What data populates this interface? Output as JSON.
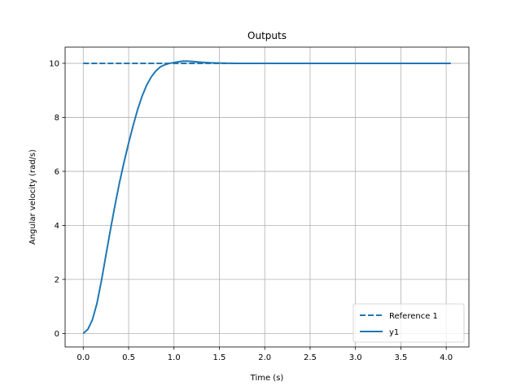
{
  "chart_data": {
    "type": "line",
    "title": "Outputs",
    "xlabel": "Time (s)",
    "ylabel": "Angular velocity (rad/s)",
    "xlim": [
      -0.2,
      4.25
    ],
    "ylim": [
      -0.5,
      10.6
    ],
    "xticks": [
      0.0,
      0.5,
      1.0,
      1.5,
      2.0,
      2.5,
      3.0,
      3.5,
      4.0
    ],
    "xtick_labels": [
      "0.0",
      "0.5",
      "1.0",
      "1.5",
      "2.0",
      "2.5",
      "3.0",
      "3.5",
      "4.0"
    ],
    "yticks": [
      0,
      2,
      4,
      6,
      8,
      10
    ],
    "ytick_labels": [
      "0",
      "2",
      "4",
      "6",
      "8",
      "10"
    ],
    "grid": true,
    "legend_position": "bottom-right",
    "series": [
      {
        "name": "Reference 1",
        "style": "dashed",
        "color": "#1f77b4",
        "x": [
          0.0,
          4.05
        ],
        "y": [
          10.0,
          10.0
        ]
      },
      {
        "name": "y1",
        "style": "solid",
        "color": "#1f77b4",
        "x": [
          0.0,
          0.05,
          0.1,
          0.15,
          0.2,
          0.25,
          0.3,
          0.35,
          0.4,
          0.45,
          0.5,
          0.55,
          0.6,
          0.65,
          0.7,
          0.75,
          0.8,
          0.85,
          0.9,
          0.95,
          1.0,
          1.05,
          1.1,
          1.15,
          1.2,
          1.3,
          1.4,
          1.5,
          1.7,
          2.0,
          2.5,
          3.0,
          3.5,
          4.05
        ],
        "y": [
          0.0,
          0.15,
          0.5,
          1.1,
          1.95,
          2.9,
          3.85,
          4.75,
          5.6,
          6.35,
          7.05,
          7.7,
          8.3,
          8.8,
          9.2,
          9.5,
          9.72,
          9.87,
          9.95,
          10.0,
          10.03,
          10.06,
          10.08,
          10.08,
          10.07,
          10.04,
          10.02,
          10.01,
          10.0,
          10.0,
          10.0,
          10.0,
          10.0,
          10.0
        ]
      }
    ]
  }
}
